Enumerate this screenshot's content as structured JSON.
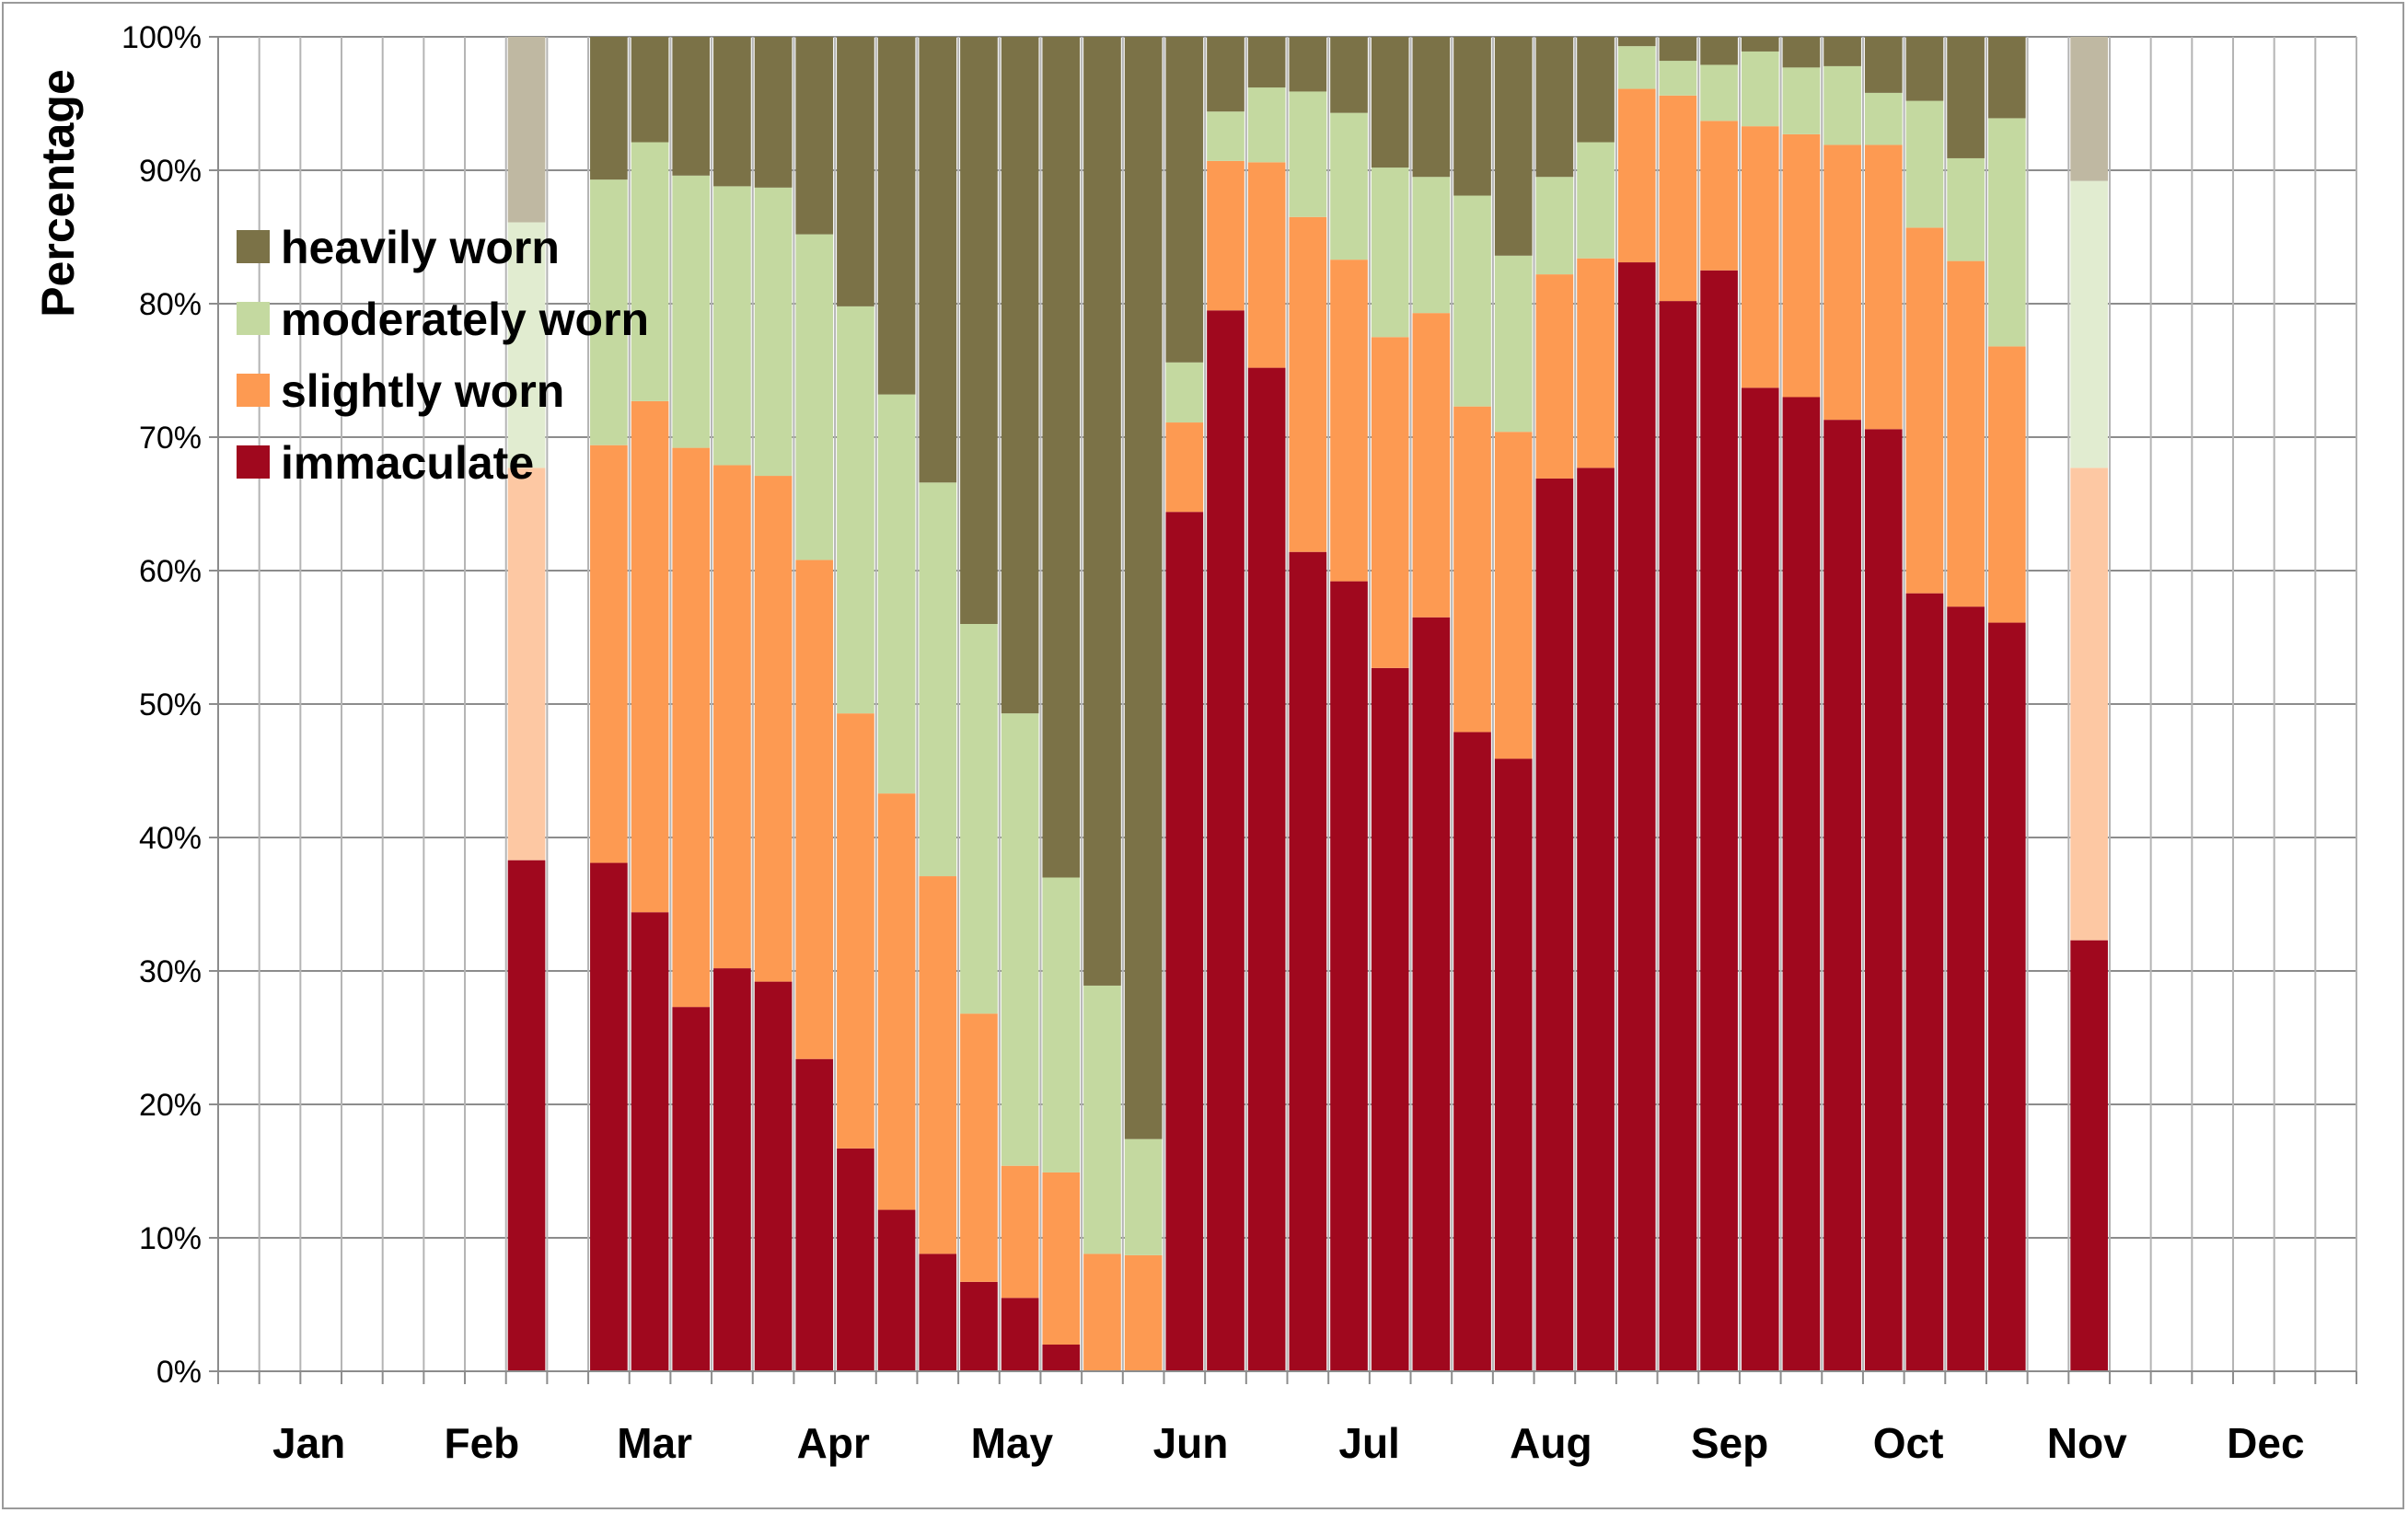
{
  "chart_data": {
    "type": "bar",
    "stacked": true,
    "ylabel": "Percentage",
    "xlabel": "",
    "ylim": [
      0,
      100
    ],
    "yticks": [
      "0%",
      "10%",
      "20%",
      "30%",
      "40%",
      "50%",
      "60%",
      "70%",
      "80%",
      "90%",
      "100%"
    ],
    "months": [
      "Jan",
      "Feb",
      "Mar",
      "Apr",
      "May",
      "Jun",
      "Jul",
      "Aug",
      "Sep",
      "Oct",
      "Nov",
      "Dec"
    ],
    "n_slots": 52,
    "legend_position": "top-left",
    "series": [
      {
        "name": "immaculate",
        "color": "#a0081e",
        "faded_color": "#a0081e"
      },
      {
        "name": "slightly worn",
        "color": "#fd9a52",
        "faded_color": "#fdc8a3"
      },
      {
        "name": "moderately worn",
        "color": "#c4d9a0",
        "faded_color": "#e1ecd0"
      },
      {
        "name": "heavily worn",
        "color": "#7b7247",
        "faded_color": "#bfb8a2"
      }
    ],
    "bars": [
      {
        "slot": 7,
        "values": [
          38.3,
          29.4,
          18.4,
          13.9
        ],
        "faded": true
      },
      {
        "slot": 9,
        "values": [
          38.1,
          31.3,
          19.9,
          10.7
        ]
      },
      {
        "slot": 10,
        "values": [
          34.4,
          38.3,
          19.4,
          7.9
        ]
      },
      {
        "slot": 11,
        "values": [
          27.3,
          41.9,
          20.4,
          10.4
        ]
      },
      {
        "slot": 12,
        "values": [
          30.2,
          37.7,
          20.9,
          11.2
        ]
      },
      {
        "slot": 13,
        "values": [
          29.2,
          37.9,
          21.6,
          11.3
        ]
      },
      {
        "slot": 14,
        "values": [
          23.4,
          37.4,
          24.4,
          14.8
        ]
      },
      {
        "slot": 15,
        "values": [
          16.7,
          32.6,
          30.5,
          20.2
        ]
      },
      {
        "slot": 16,
        "values": [
          12.1,
          31.2,
          29.9,
          26.8
        ]
      },
      {
        "slot": 17,
        "values": [
          8.8,
          28.3,
          29.5,
          33.4
        ]
      },
      {
        "slot": 18,
        "values": [
          6.7,
          20.1,
          29.2,
          44.0
        ]
      },
      {
        "slot": 19,
        "values": [
          5.5,
          9.9,
          33.9,
          50.7
        ]
      },
      {
        "slot": 20,
        "values": [
          2.0,
          12.9,
          22.1,
          63.0
        ]
      },
      {
        "slot": 21,
        "values": [
          0,
          8.8,
          20.1,
          71.1
        ]
      },
      {
        "slot": 22,
        "values": [
          0,
          8.7,
          8.7,
          82.6
        ]
      },
      {
        "slot": 23,
        "values": [
          64.4,
          6.7,
          4.5,
          24.4
        ]
      },
      {
        "slot": 24,
        "values": [
          79.5,
          11.2,
          3.7,
          5.6
        ]
      },
      {
        "slot": 25,
        "values": [
          75.2,
          15.4,
          5.6,
          3.8
        ]
      },
      {
        "slot": 26,
        "values": [
          61.4,
          25.1,
          9.4,
          4.1
        ]
      },
      {
        "slot": 27,
        "values": [
          59.2,
          24.1,
          11.0,
          5.7
        ]
      },
      {
        "slot": 28,
        "values": [
          52.7,
          24.8,
          12.7,
          9.8
        ]
      },
      {
        "slot": 29,
        "values": [
          56.5,
          22.8,
          10.2,
          10.5
        ]
      },
      {
        "slot": 30,
        "values": [
          47.9,
          24.4,
          15.8,
          11.9
        ]
      },
      {
        "slot": 31,
        "values": [
          45.9,
          24.5,
          13.2,
          16.4
        ]
      },
      {
        "slot": 32,
        "values": [
          66.9,
          15.3,
          7.3,
          10.5
        ]
      },
      {
        "slot": 33,
        "values": [
          67.7,
          15.7,
          8.7,
          7.9
        ]
      },
      {
        "slot": 34,
        "values": [
          83.1,
          13.0,
          3.2,
          0.7
        ]
      },
      {
        "slot": 35,
        "values": [
          80.2,
          15.4,
          2.6,
          1.8
        ]
      },
      {
        "slot": 36,
        "values": [
          82.5,
          11.2,
          4.2,
          2.1
        ]
      },
      {
        "slot": 37,
        "values": [
          73.7,
          19.6,
          5.6,
          1.1
        ]
      },
      {
        "slot": 38,
        "values": [
          73.0,
          19.7,
          5.0,
          2.3
        ]
      },
      {
        "slot": 39,
        "values": [
          71.3,
          20.6,
          5.9,
          2.2
        ]
      },
      {
        "slot": 40,
        "values": [
          70.6,
          21.3,
          3.9,
          4.2
        ]
      },
      {
        "slot": 41,
        "values": [
          58.3,
          27.4,
          9.5,
          4.8
        ]
      },
      {
        "slot": 42,
        "values": [
          57.3,
          25.9,
          7.7,
          9.1
        ]
      },
      {
        "slot": 43,
        "values": [
          56.1,
          20.7,
          17.1,
          6.1
        ]
      },
      {
        "slot": 45,
        "values": [
          32.3,
          35.4,
          21.5,
          10.8
        ],
        "faded": true
      }
    ]
  }
}
